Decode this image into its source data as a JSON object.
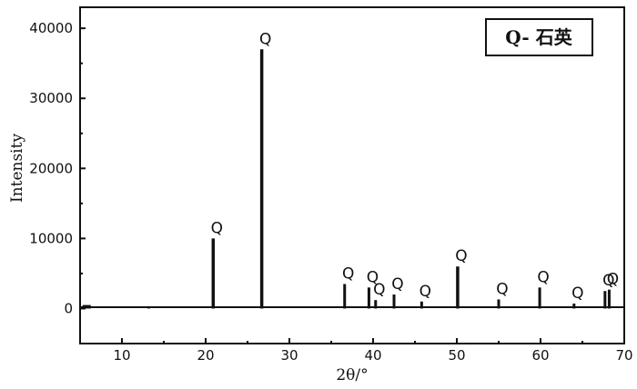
{
  "chart_data": {
    "type": "line",
    "xlabel": "2θ/°",
    "ylabel": "Intensity",
    "xlim": [
      5,
      70
    ],
    "ylim": [
      -5000,
      43000
    ],
    "x_ticks": [
      10,
      20,
      30,
      40,
      50,
      60,
      70
    ],
    "y_ticks": [
      0,
      10000,
      20000,
      30000,
      40000
    ],
    "x_tick_labels": [
      "10",
      "20",
      "30",
      "40",
      "50",
      "60",
      "70"
    ],
    "y_tick_labels": [
      "0",
      "10000",
      "20000",
      "30000",
      "40000"
    ],
    "legend": {
      "text": "Q- 石英",
      "position": "top-right"
    },
    "series": [
      {
        "peaks": [
          {
            "x": 13.2,
            "y": 300,
            "label": ""
          },
          {
            "x": 20.9,
            "y": 10000,
            "label": "Q"
          },
          {
            "x": 26.7,
            "y": 37000,
            "label": "Q"
          },
          {
            "x": 36.6,
            "y": 3500,
            "label": "Q"
          },
          {
            "x": 39.5,
            "y": 3000,
            "label": "Q"
          },
          {
            "x": 40.3,
            "y": 1200,
            "label": "Q"
          },
          {
            "x": 42.5,
            "y": 2000,
            "label": "Q"
          },
          {
            "x": 45.8,
            "y": 1000,
            "label": "Q"
          },
          {
            "x": 50.1,
            "y": 6000,
            "label": "Q"
          },
          {
            "x": 55.0,
            "y": 1300,
            "label": "Q"
          },
          {
            "x": 59.9,
            "y": 3000,
            "label": "Q"
          },
          {
            "x": 64.0,
            "y": 700,
            "label": "Q"
          },
          {
            "x": 67.7,
            "y": 2500,
            "label": "Q"
          },
          {
            "x": 68.2,
            "y": 2700,
            "label": "Q"
          }
        ]
      }
    ]
  }
}
